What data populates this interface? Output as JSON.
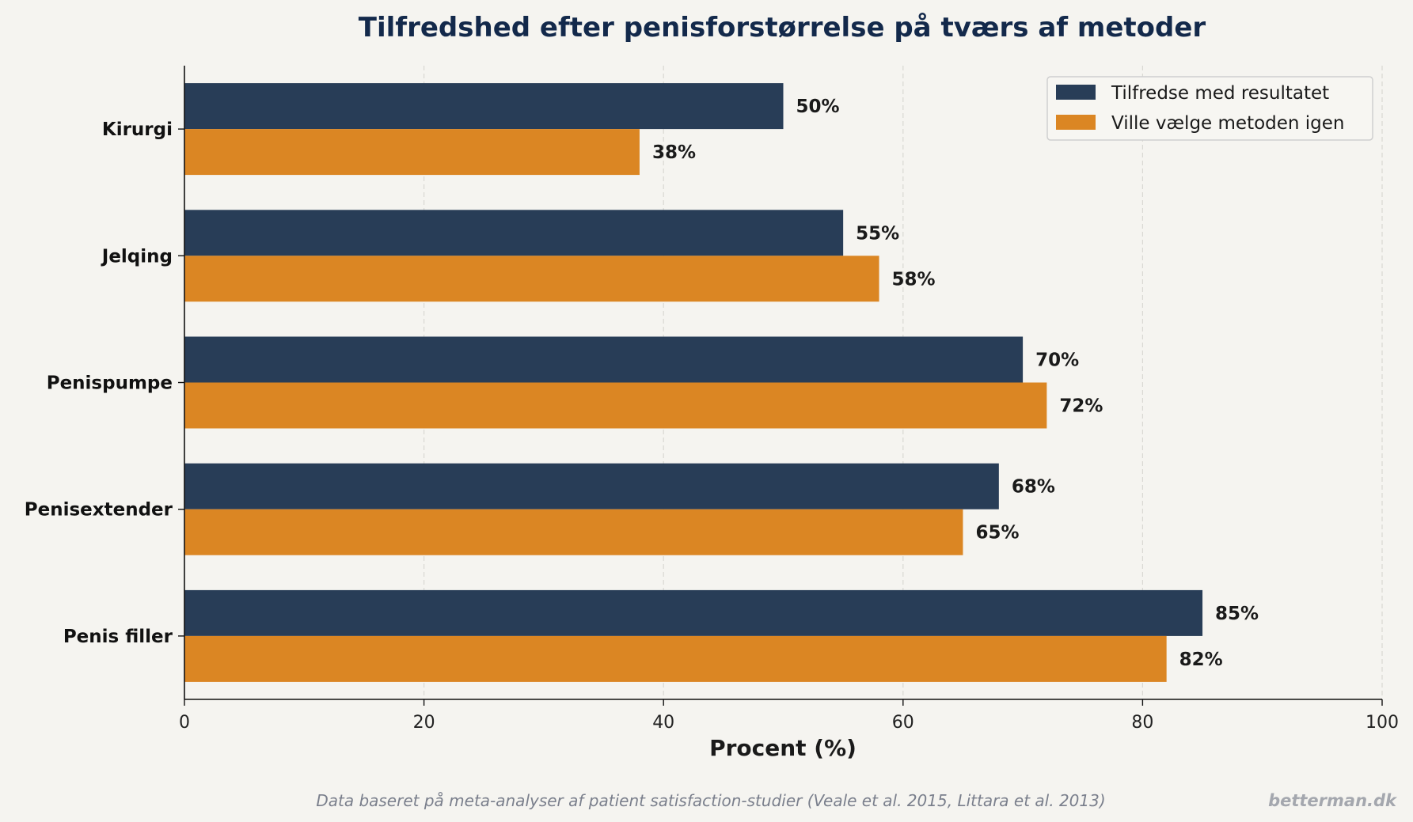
{
  "chart_data": {
    "type": "bar",
    "orientation": "horizontal",
    "title": "Tilfredshed efter penisforstørrelse på tværs af metoder",
    "categories": [
      "Kirurgi",
      "Jelqing",
      "Penispumpe",
      "Penisextender",
      "Penis filler"
    ],
    "series": [
      {
        "name": "Tilfredse med resultatet",
        "values": [
          50,
          55,
          70,
          68,
          85
        ],
        "color": "#283d57"
      },
      {
        "name": "Ville vælge metoden igen",
        "values": [
          38,
          58,
          72,
          65,
          82
        ],
        "color": "#db8623"
      }
    ],
    "value_suffix": "%",
    "xlabel": "Procent (%)",
    "ylabel": "",
    "xlim": [
      0,
      100
    ],
    "xticks": [
      0,
      20,
      40,
      60,
      80,
      100
    ],
    "grid": "x, dashed",
    "legend": "top-right"
  },
  "footer": {
    "note": "Data baseret på meta-analyser af patient satisfaction-studier (Veale et al. 2015, Littara et al. 2013)",
    "brand": "betterman.dk"
  }
}
